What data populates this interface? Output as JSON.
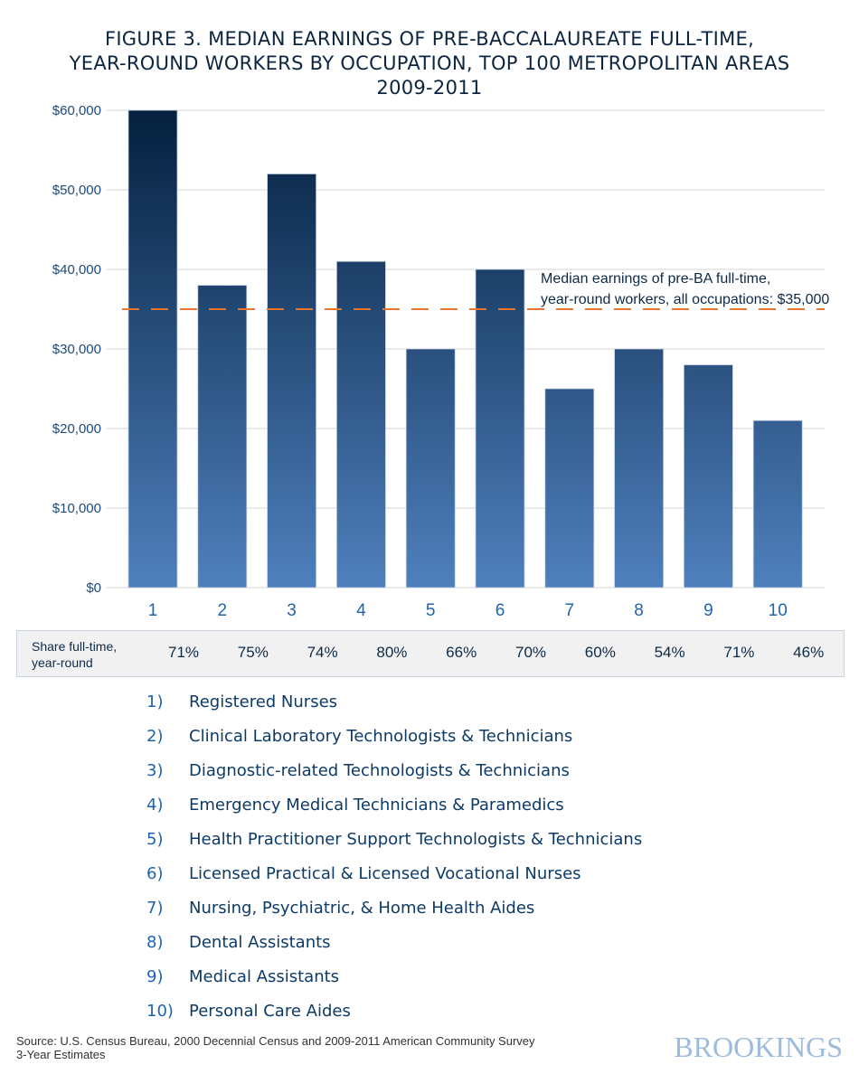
{
  "title_lines": [
    "FIGURE 3.  MEDIAN EARNINGS OF PRE-BACCALAUREATE FULL-TIME,",
    "YEAR-ROUND WORKERS BY OCCUPATION, TOP 100 METROPOLITAN AREAS",
    "2009-2011"
  ],
  "chart_data": {
    "type": "bar",
    "title": "FIGURE 3.  MEDIAN EARNINGS OF PRE-BACCALAUREATE FULL-TIME, YEAR-ROUND WORKERS BY OCCUPATION, TOP 100 METROPOLITAN AREAS 2009-2011",
    "categories": [
      "1",
      "2",
      "3",
      "4",
      "5",
      "6",
      "7",
      "8",
      "9",
      "10"
    ],
    "values": [
      60000,
      38000,
      52000,
      41000,
      30000,
      40000,
      25000,
      30000,
      28000,
      21000
    ],
    "ylim": [
      0,
      60000
    ],
    "yticks": [
      0,
      10000,
      20000,
      30000,
      40000,
      50000,
      60000
    ],
    "ytick_labels": [
      "$0",
      "$10,000",
      "$20,000",
      "$30,000",
      "$40,000",
      "$50,000",
      "$60,000"
    ],
    "grid": true,
    "reference_line": {
      "value": 35000,
      "style": "dashed",
      "color": "#e8752e",
      "label_lines": [
        "Median earnings of pre-BA full-time,",
        "year-round workers, all occupations: $35,000"
      ]
    },
    "bar_gradient": {
      "top": "#04203e",
      "bottom": "#4f80bd"
    }
  },
  "share_row": {
    "label_lines": [
      "Share full-time,",
      "year-round"
    ],
    "values": [
      "71%",
      "75%",
      "74%",
      "80%",
      "66%",
      "70%",
      "60%",
      "54%",
      "71%",
      "46%"
    ]
  },
  "legend": [
    {
      "num": "1)",
      "label": "Registered Nurses"
    },
    {
      "num": "2)",
      "label": "Clinical Laboratory Technologists & Technicians"
    },
    {
      "num": "3)",
      "label": "Diagnostic-related Technologists & Technicians"
    },
    {
      "num": "4)",
      "label": "Emergency Medical Technicians & Paramedics"
    },
    {
      "num": "5)",
      "label": "Health Practitioner Support Technologists & Technicians"
    },
    {
      "num": "6)",
      "label": "Licensed Practical & Licensed Vocational Nurses"
    },
    {
      "num": "7)",
      "label": "Nursing, Psychiatric, & Home Health Aides"
    },
    {
      "num": "8)",
      "label": "Dental Assistants"
    },
    {
      "num": "9)",
      "label": "Medical Assistants"
    },
    {
      "num": "10)",
      "label": "Personal Care Aides"
    }
  ],
  "source_lines": [
    "Source: U.S. Census Bureau, 2000 Decennial Census and 2009-2011 American Community Survey",
    "3-Year Estimates"
  ],
  "logo": "BROOKINGS"
}
